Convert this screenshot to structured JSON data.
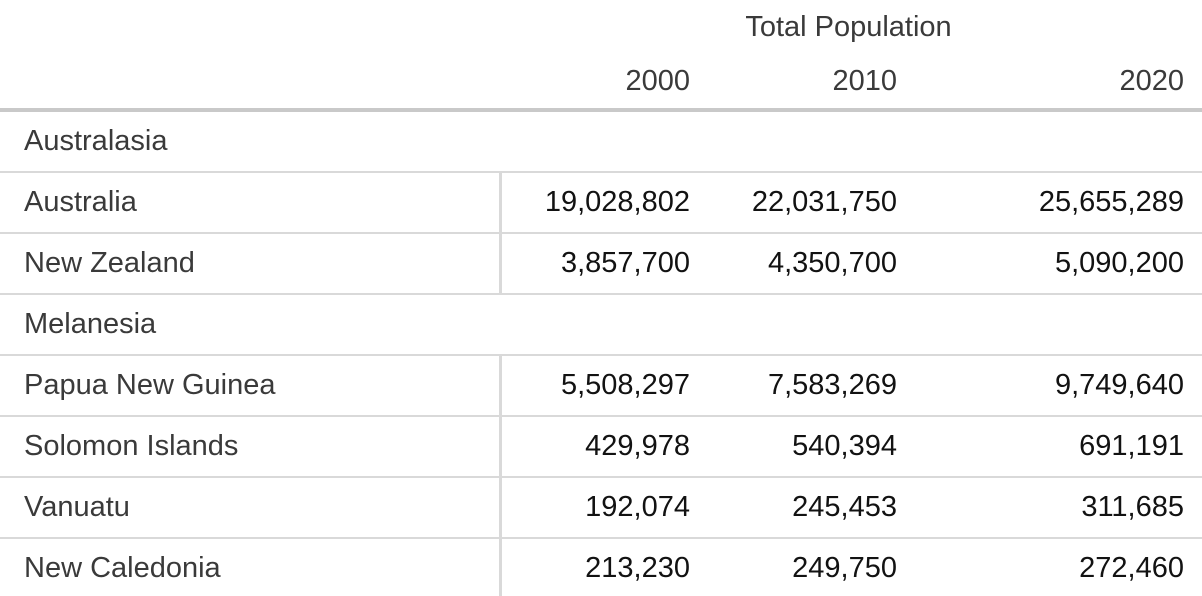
{
  "chart_data": {
    "type": "table",
    "title": "Total Population",
    "columns": [
      "2000",
      "2010",
      "2020"
    ],
    "groups": [
      {
        "name": "Australasia",
        "rows": [
          {
            "label": "Australia",
            "values": [
              19028802,
              22031750,
              25655289
            ]
          },
          {
            "label": "New Zealand",
            "values": [
              3857700,
              4350700,
              5090200
            ]
          }
        ]
      },
      {
        "name": "Melanesia",
        "rows": [
          {
            "label": "Papua New Guinea",
            "values": [
              5508297,
              7583269,
              9749640
            ]
          },
          {
            "label": "Solomon Islands",
            "values": [
              429978,
              540394,
              691191
            ]
          },
          {
            "label": "Vanuatu",
            "values": [
              192074,
              245453,
              311685
            ]
          },
          {
            "label": "New Caledonia",
            "values": [
              213230,
              249750,
              272460
            ]
          }
        ]
      }
    ]
  },
  "table": {
    "title": "Total Population",
    "years": [
      "2000",
      "2010",
      "2020"
    ],
    "groups": [
      {
        "name": "Australasia",
        "rows": [
          {
            "label": "Australia",
            "values": [
              "19,028,802",
              "22,031,750",
              "25,655,289"
            ]
          },
          {
            "label": "New Zealand",
            "values": [
              "3,857,700",
              "4,350,700",
              "5,090,200"
            ]
          }
        ]
      },
      {
        "name": "Melanesia",
        "rows": [
          {
            "label": "Papua New Guinea",
            "values": [
              "5,508,297",
              "7,583,269",
              "9,749,640"
            ]
          },
          {
            "label": "Solomon Islands",
            "values": [
              "429,978",
              "540,394",
              "691,191"
            ]
          },
          {
            "label": "Vanuatu",
            "values": [
              "192,074",
              "245,453",
              "311,685"
            ]
          },
          {
            "label": "New Caledonia",
            "values": [
              "213,230",
              "249,750",
              "272,460"
            ]
          }
        ]
      }
    ]
  },
  "colors": {
    "background": "#ffffff",
    "label_text": "#3a3a3a",
    "number_text": "#121212",
    "heavy_border": "#c9c9c9",
    "light_border": "#d9d9d9"
  }
}
